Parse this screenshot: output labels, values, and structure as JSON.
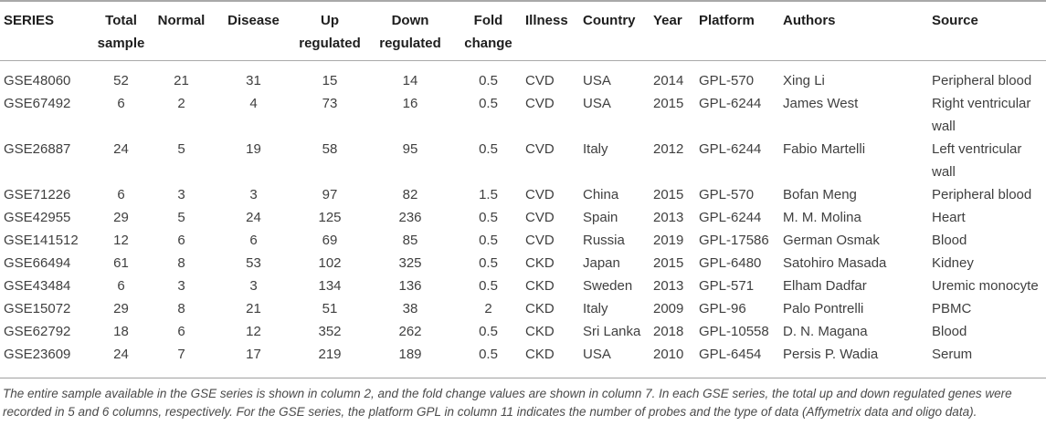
{
  "table": {
    "columns": [
      "SERIES",
      "Total sample",
      "Normal",
      "Disease",
      "Up regulated",
      "Down regulated",
      "Fold change",
      "Illness",
      "Country",
      "Year",
      "Platform",
      "Authors",
      "Source"
    ],
    "rows": [
      [
        "GSE48060",
        "52",
        "21",
        "31",
        "15",
        "14",
        "0.5",
        "CVD",
        "USA",
        "2014",
        "GPL-570",
        "Xing Li",
        "Peripheral blood"
      ],
      [
        "GSE67492",
        "6",
        "2",
        "4",
        "73",
        "16",
        "0.5",
        "CVD",
        "USA",
        "2015",
        "GPL-6244",
        "James West",
        "Right ventricular wall"
      ],
      [
        "GSE26887",
        "24",
        "5",
        "19",
        "58",
        "95",
        "0.5",
        "CVD",
        "Italy",
        "2012",
        "GPL-6244",
        "Fabio Martelli",
        "Left ventricular wall"
      ],
      [
        "GSE71226",
        "6",
        "3",
        "3",
        "97",
        "82",
        "1.5",
        "CVD",
        "China",
        "2015",
        "GPL-570",
        "Bofan Meng",
        "Peripheral blood"
      ],
      [
        "GSE42955",
        "29",
        "5",
        "24",
        "125",
        "236",
        "0.5",
        "CVD",
        "Spain",
        "2013",
        "GPL-6244",
        "M. M. Molina",
        "Heart"
      ],
      [
        "GSE141512",
        "12",
        "6",
        "6",
        "69",
        "85",
        "0.5",
        "CVD",
        "Russia",
        "2019",
        "GPL-17586",
        "German Osmak",
        "Blood"
      ],
      [
        "GSE66494",
        "61",
        "8",
        "53",
        "102",
        "325",
        "0.5",
        "CKD",
        "Japan",
        "2015",
        "GPL-6480",
        "Satohiro Masada",
        "Kidney"
      ],
      [
        "GSE43484",
        "6",
        "3",
        "3",
        "134",
        "136",
        "0.5",
        "CKD",
        "Sweden",
        "2013",
        "GPL-571",
        "Elham Dadfar",
        "Uremic monocyte"
      ],
      [
        "GSE15072",
        "29",
        "8",
        "21",
        "51",
        "38",
        "2",
        "CKD",
        "Italy",
        "2009",
        "GPL-96",
        "Palo Pontrelli",
        "PBMC"
      ],
      [
        "GSE62792",
        "18",
        "6",
        "12",
        "352",
        "262",
        "0.5",
        "CKD",
        "Sri Lanka",
        "2018",
        "GPL-10558",
        "D. N. Magana",
        "Blood"
      ],
      [
        "GSE23609",
        "24",
        "7",
        "17",
        "219",
        "189",
        "0.5",
        "CKD",
        "USA",
        "2010",
        "GPL-6454",
        "Persis P. Wadia",
        "Serum"
      ]
    ]
  },
  "footnote": "The entire sample available in the GSE series is shown in column 2, and the fold change values are shown in column 7. In each GSE series, the total up and down regulated genes were recorded in 5 and 6 columns, respectively. For the GSE series, the platform GPL in column 11 indicates the number of probes and the type of data (Affymetrix data and oligo data).",
  "colors": {
    "header_text": "#1e1e1e",
    "body_text": "#3f3f3f",
    "footnote_text": "#4a4a4a",
    "rule": "#a9a9a9",
    "background": "#ffffff"
  }
}
